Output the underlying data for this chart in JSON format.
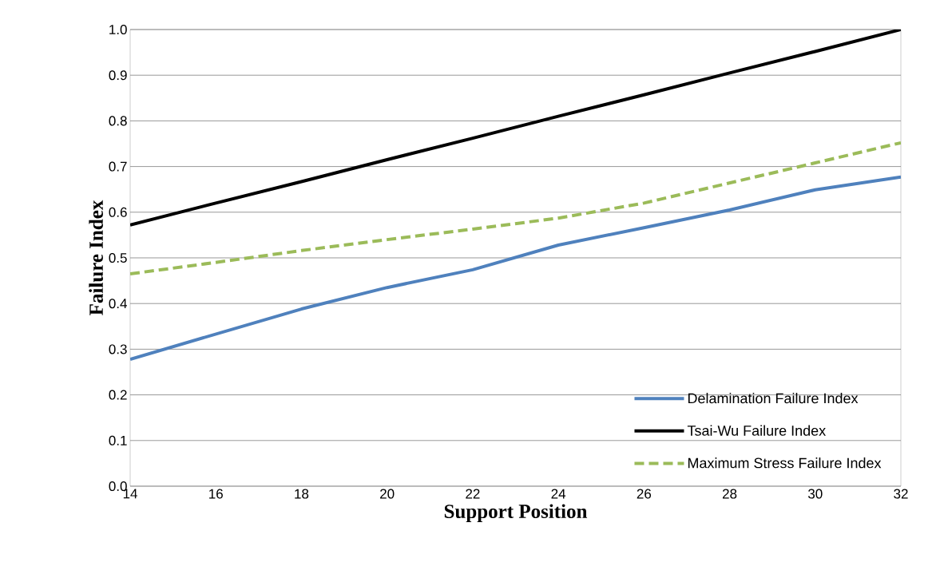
{
  "chart_data": {
    "type": "line",
    "xlabel": "Support Position",
    "ylabel": "Failure Index",
    "x": [
      14,
      16,
      18,
      20,
      22,
      24,
      26,
      28,
      30,
      32
    ],
    "series": [
      {
        "name": "Delamination Failure Index",
        "color": "#4f81bd",
        "line_style": "solid",
        "values": [
          0.278,
          0.333,
          0.388,
          0.435,
          0.474,
          0.528,
          0.566,
          0.605,
          0.649,
          0.677
        ]
      },
      {
        "name": "Tsai-Wu Failure Index",
        "color": "#000000",
        "line_style": "solid",
        "values": [
          0.572,
          0.62,
          0.667,
          0.715,
          0.762,
          0.81,
          0.857,
          0.905,
          0.952,
          1.0
        ]
      },
      {
        "name": "Maximum Stress Failure Index",
        "color": "#9bbb59",
        "line_style": "dashed",
        "values": [
          0.465,
          0.49,
          0.516,
          0.54,
          0.563,
          0.587,
          0.62,
          0.664,
          0.708,
          0.752
        ]
      }
    ],
    "xlim": [
      14,
      32
    ],
    "xticks": [
      14,
      16,
      18,
      20,
      22,
      24,
      26,
      28,
      30,
      32
    ],
    "ylim": [
      0,
      1.0
    ],
    "yticks": [
      {
        "value": 0,
        "label": "0.0"
      },
      {
        "value": 0.1,
        "label": "0.1"
      },
      {
        "value": 0.2,
        "label": "0.2"
      },
      {
        "value": 0.3,
        "label": "0.3"
      },
      {
        "value": 0.4,
        "label": "0.4"
      },
      {
        "value": 0.5,
        "label": "0.5"
      },
      {
        "value": 0.6,
        "label": "0.6"
      },
      {
        "value": 0.7,
        "label": "0.7"
      },
      {
        "value": 0.8,
        "label": "0.8"
      },
      {
        "value": 0.9,
        "label": "0.9"
      },
      {
        "value": 1.0,
        "label": "1.0"
      }
    ],
    "grid": "y",
    "legend": "bottom right"
  }
}
